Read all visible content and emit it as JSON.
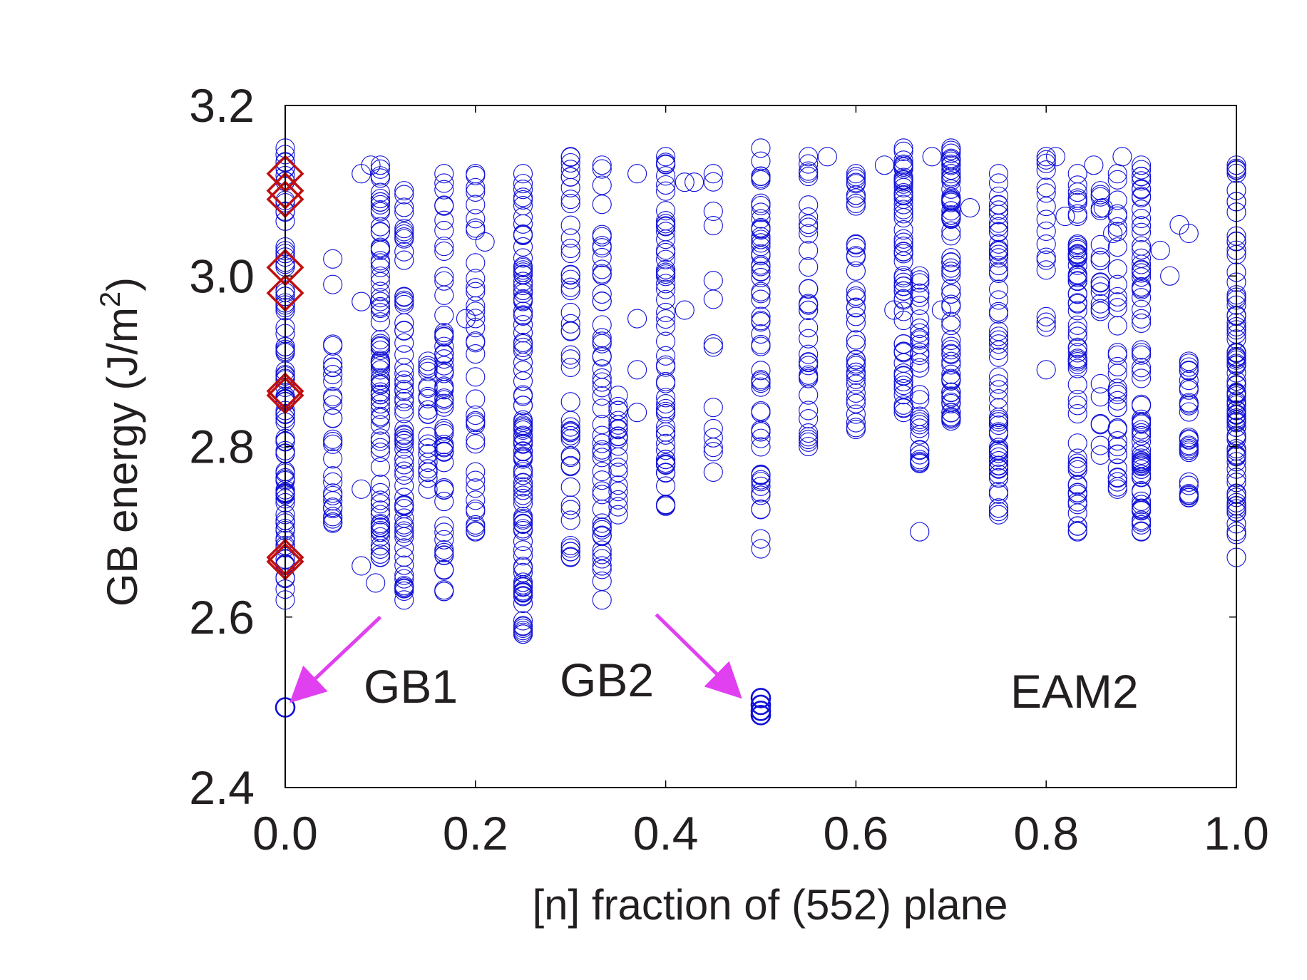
{
  "chart_data": {
    "type": "scatter",
    "title": "",
    "xlabel": "[n] fraction of (552) plane",
    "ylabel_main": "GB energy (J/m",
    "ylabel_sup": "2",
    "ylabel_close": ")",
    "xlim": [
      0.0,
      1.0
    ],
    "ylim": [
      2.4,
      3.2
    ],
    "xticks": [
      0.0,
      0.2,
      0.4,
      0.6,
      0.8,
      1.0
    ],
    "xtick_labels": [
      "0.0",
      "0.2",
      "0.4",
      "0.6",
      "0.8",
      "1.0"
    ],
    "yticks": [
      2.4,
      2.6,
      2.8,
      3.0,
      3.2
    ],
    "ytick_labels": [
      "2.4",
      "2.6",
      "2.8",
      "3.0",
      "3.2"
    ],
    "grid": false,
    "colors": {
      "circle": "#1010d8",
      "diamond": "#c01010",
      "arrow": "#e040f0",
      "text": "#231f20"
    },
    "columns": [
      {
        "x": 0.0,
        "ymin": 2.62,
        "ymax": 3.15,
        "n": 90
      },
      {
        "x": 0.05,
        "ymin": 2.71,
        "ymax": 2.92,
        "n": 25,
        "extra": [
          3.02,
          2.99
        ]
      },
      {
        "x": 0.1,
        "ymin": 2.67,
        "ymax": 3.13,
        "n": 75
      },
      {
        "x": 0.125,
        "ymin": 2.62,
        "ymax": 3.1,
        "n": 65
      },
      {
        "x": 0.15,
        "ymin": 2.75,
        "ymax": 2.9,
        "n": 20
      },
      {
        "x": 0.167,
        "ymin": 2.63,
        "ymax": 3.12,
        "n": 55
      },
      {
        "x": 0.2,
        "ymin": 2.7,
        "ymax": 3.12,
        "n": 35
      },
      {
        "x": 0.25,
        "ymin": 2.58,
        "ymax": 3.12,
        "n": 100
      },
      {
        "x": 0.3,
        "ymin": 2.67,
        "ymax": 3.14,
        "n": 45
      },
      {
        "x": 0.333,
        "ymin": 2.62,
        "ymax": 3.13,
        "n": 50
      },
      {
        "x": 0.35,
        "ymin": 2.72,
        "ymax": 2.86,
        "n": 18
      },
      {
        "x": 0.4,
        "ymin": 2.73,
        "ymax": 3.14,
        "n": 55
      },
      {
        "x": 0.45,
        "ymin": 2.77,
        "ymax": 3.12,
        "n": 12
      },
      {
        "x": 0.5,
        "ymin": 2.68,
        "ymax": 3.15,
        "n": 55
      },
      {
        "x": 0.55,
        "ymin": 2.8,
        "ymax": 3.14,
        "n": 35
      },
      {
        "x": 0.6,
        "ymin": 2.82,
        "ymax": 3.12,
        "n": 40
      },
      {
        "x": 0.65,
        "ymin": 2.84,
        "ymax": 3.15,
        "n": 55
      },
      {
        "x": 0.667,
        "ymin": 2.78,
        "ymax": 3.0,
        "n": 30,
        "extra": [
          2.7
        ]
      },
      {
        "x": 0.7,
        "ymin": 2.83,
        "ymax": 3.15,
        "n": 65
      },
      {
        "x": 0.75,
        "ymin": 2.72,
        "ymax": 3.12,
        "n": 60
      },
      {
        "x": 0.8,
        "ymin": 2.89,
        "ymax": 3.14,
        "n": 15
      },
      {
        "x": 0.833,
        "ymin": 2.7,
        "ymax": 3.12,
        "n": 60
      },
      {
        "x": 0.857,
        "ymin": 2.79,
        "ymax": 3.1,
        "n": 20
      },
      {
        "x": 0.875,
        "ymin": 2.75,
        "ymax": 3.12,
        "n": 35
      },
      {
        "x": 0.9,
        "ymin": 2.7,
        "ymax": 3.13,
        "n": 70
      },
      {
        "x": 0.95,
        "ymin": 2.74,
        "ymax": 2.9,
        "n": 25,
        "extra": [
          3.05
        ]
      },
      {
        "x": 1.0,
        "ymin": 2.67,
        "ymax": 3.13,
        "n": 85
      }
    ],
    "scattered_points": [
      {
        "x": 0.08,
        "y": 3.12
      },
      {
        "x": 0.09,
        "y": 3.13
      },
      {
        "x": 0.08,
        "y": 2.66
      },
      {
        "x": 0.08,
        "y": 2.97
      },
      {
        "x": 0.08,
        "y": 2.75
      },
      {
        "x": 0.095,
        "y": 2.64
      },
      {
        "x": 0.21,
        "y": 3.04
      },
      {
        "x": 0.19,
        "y": 2.95
      },
      {
        "x": 0.37,
        "y": 3.12
      },
      {
        "x": 0.37,
        "y": 2.95
      },
      {
        "x": 0.37,
        "y": 2.89
      },
      {
        "x": 0.37,
        "y": 2.84
      },
      {
        "x": 0.42,
        "y": 3.11
      },
      {
        "x": 0.43,
        "y": 3.11
      },
      {
        "x": 0.42,
        "y": 2.96
      },
      {
        "x": 0.57,
        "y": 3.14
      },
      {
        "x": 0.63,
        "y": 3.13
      },
      {
        "x": 0.64,
        "y": 2.96
      },
      {
        "x": 0.68,
        "y": 3.14
      },
      {
        "x": 0.69,
        "y": 2.96
      },
      {
        "x": 0.72,
        "y": 3.08
      },
      {
        "x": 0.81,
        "y": 3.14
      },
      {
        "x": 0.82,
        "y": 3.07
      },
      {
        "x": 0.85,
        "y": 3.13
      },
      {
        "x": 0.86,
        "y": 3.08
      },
      {
        "x": 0.87,
        "y": 3.05
      },
      {
        "x": 0.88,
        "y": 3.14
      },
      {
        "x": 0.92,
        "y": 3.03
      },
      {
        "x": 0.93,
        "y": 3.0
      },
      {
        "x": 0.94,
        "y": 3.06
      }
    ],
    "low_energy_points": [
      {
        "x": 0.0,
        "y": 2.494,
        "label": "GB1"
      },
      {
        "x": 0.5,
        "y": 2.505
      },
      {
        "x": 0.5,
        "y": 2.497
      },
      {
        "x": 0.5,
        "y": 2.49
      },
      {
        "x": 0.5,
        "y": 2.485
      }
    ],
    "diamonds": [
      {
        "x": 0.0,
        "y": 3.12
      },
      {
        "x": 0.0,
        "y": 3.1
      },
      {
        "x": 0.0,
        "y": 3.09
      },
      {
        "x": 0.0,
        "y": 3.01
      },
      {
        "x": 0.0,
        "y": 2.98
      },
      {
        "x": 0.0,
        "y": 2.865
      },
      {
        "x": 0.0,
        "y": 2.86
      },
      {
        "x": 0.0,
        "y": 2.67
      },
      {
        "x": 0.0,
        "y": 2.665
      }
    ],
    "annotations": [
      {
        "text": "GB1",
        "x": 0.085,
        "y": 2.51
      },
      {
        "text": "GB2",
        "x": 0.29,
        "y": 2.515
      },
      {
        "text": "EAM2",
        "x": 0.76,
        "y": 2.505
      }
    ],
    "arrows": [
      {
        "from": [
          0.1,
          2.6
        ],
        "to": [
          0.01,
          2.505
        ],
        "target": "GB1"
      },
      {
        "from": [
          0.39,
          2.603
        ],
        "to": [
          0.475,
          2.51
        ],
        "target": "GB2"
      }
    ]
  }
}
